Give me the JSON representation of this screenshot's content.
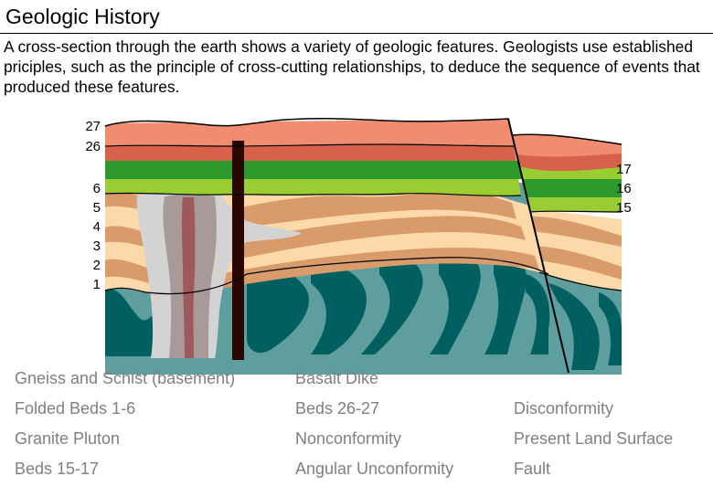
{
  "title": "Geologic History",
  "intro": "A cross-section through the earth shows a variety of geologic features. Geologists use established priciples, such as the principle of cross-cutting relationships, to deduce the sequence of events that produced these features.",
  "figure": {
    "left_labels": [
      "27",
      "26",
      "6",
      "5",
      "4",
      "3",
      "2",
      "1"
    ],
    "right_labels": [
      "17",
      "16",
      "15"
    ],
    "colors": {
      "surface_beds": "#f08c70",
      "bed26": "#d8614a",
      "green_light": "#9acd32",
      "green_dark": "#2e9a2e",
      "tan_light": "#fdd8a8",
      "tan_dark": "#d99b6a",
      "basement_light": "#5f9e9e",
      "basement_dark": "#006060",
      "pluton_outer": "#d3d3d3",
      "pluton_inner": "#a99a9a",
      "pluton_core": "#9e5a5a",
      "dike": "#2a0800"
    }
  },
  "choices": [
    [
      "Gneiss and Schist (basement)",
      "Basalt Dike",
      ""
    ],
    [
      "Folded Beds 1-6",
      "Beds 26-27",
      "Disconformity"
    ],
    [
      "Granite Pluton",
      "Nonconformity",
      "Present Land Surface"
    ],
    [
      "Beds 15-17",
      "Angular Unconformity",
      "Fault"
    ]
  ]
}
